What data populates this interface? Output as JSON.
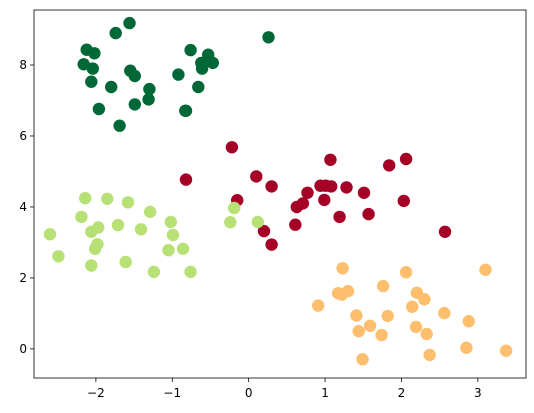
{
  "chart_data": {
    "type": "scatter",
    "title": "",
    "xlabel": "",
    "ylabel": "",
    "xlim": [
      -2.81,
      3.63
    ],
    "ylim": [
      -0.82,
      9.55
    ],
    "xticks": [
      -2,
      -1,
      0,
      1,
      2,
      3
    ],
    "yticks": [
      0,
      2,
      4,
      6,
      8
    ],
    "grid": false,
    "legend": "none",
    "series": [
      {
        "color": "#006837",
        "points": [
          [
            -1.56,
            9.18
          ],
          [
            -1.74,
            8.9
          ],
          [
            -2.12,
            8.43
          ],
          [
            -2.02,
            8.33
          ],
          [
            -0.76,
            8.42
          ],
          [
            -0.53,
            8.29
          ],
          [
            0.26,
            8.78
          ],
          [
            -2.16,
            8.02
          ],
          [
            -2.04,
            7.9
          ],
          [
            -0.62,
            8.06
          ],
          [
            -0.47,
            8.06
          ],
          [
            -0.61,
            7.9
          ],
          [
            -1.55,
            7.84
          ],
          [
            -1.49,
            7.69
          ],
          [
            -0.92,
            7.73
          ],
          [
            -2.06,
            7.53
          ],
          [
            -1.8,
            7.38
          ],
          [
            -0.66,
            7.38
          ],
          [
            -1.3,
            7.32
          ],
          [
            -1.31,
            7.03
          ],
          [
            -1.49,
            6.89
          ],
          [
            -1.96,
            6.76
          ],
          [
            -0.83,
            6.71
          ],
          [
            -0.82,
            6.71
          ],
          [
            -1.69,
            6.29
          ]
        ]
      },
      {
        "color": "#a50026",
        "points": [
          [
            -0.22,
            5.68
          ],
          [
            2.06,
            5.35
          ],
          [
            1.07,
            5.33
          ],
          [
            1.84,
            5.17
          ],
          [
            0.1,
            4.86
          ],
          [
            -0.82,
            4.77
          ],
          [
            0.3,
            4.58
          ],
          [
            0.94,
            4.6
          ],
          [
            1.01,
            4.6
          ],
          [
            1.08,
            4.58
          ],
          [
            1.28,
            4.55
          ],
          [
            0.77,
            4.4
          ],
          [
            1.51,
            4.4
          ],
          [
            -0.15,
            4.19
          ],
          [
            0.99,
            4.2
          ],
          [
            2.03,
            4.17
          ],
          [
            0.71,
            4.1
          ],
          [
            0.63,
            4.0
          ],
          [
            1.57,
            3.8
          ],
          [
            1.19,
            3.72
          ],
          [
            0.61,
            3.5
          ],
          [
            0.2,
            3.32
          ],
          [
            2.57,
            3.3
          ],
          [
            0.3,
            2.94
          ]
        ]
      },
      {
        "color": "#b7e075",
        "points": [
          [
            -2.14,
            4.25
          ],
          [
            -1.85,
            4.23
          ],
          [
            -1.58,
            4.13
          ],
          [
            -0.19,
            3.97
          ],
          [
            -1.29,
            3.86
          ],
          [
            -2.19,
            3.72
          ],
          [
            -1.02,
            3.58
          ],
          [
            0.12,
            3.58
          ],
          [
            -0.24,
            3.57
          ],
          [
            -1.71,
            3.49
          ],
          [
            -1.97,
            3.42
          ],
          [
            -1.41,
            3.37
          ],
          [
            -2.06,
            3.3
          ],
          [
            -2.6,
            3.23
          ],
          [
            -0.99,
            3.21
          ],
          [
            -1.98,
            2.95
          ],
          [
            -2.01,
            2.82
          ],
          [
            -0.86,
            2.82
          ],
          [
            -1.05,
            2.78
          ],
          [
            -2.49,
            2.61
          ],
          [
            -1.61,
            2.45
          ],
          [
            -2.06,
            2.35
          ],
          [
            -1.24,
            2.17
          ],
          [
            -0.76,
            2.17
          ]
        ]
      },
      {
        "color": "#fdbe6e",
        "points": [
          [
            1.23,
            2.27
          ],
          [
            3.1,
            2.23
          ],
          [
            2.06,
            2.16
          ],
          [
            1.76,
            1.77
          ],
          [
            2.2,
            1.58
          ],
          [
            1.3,
            1.63
          ],
          [
            1.17,
            1.57
          ],
          [
            1.22,
            1.53
          ],
          [
            2.3,
            1.4
          ],
          [
            2.14,
            1.19
          ],
          [
            0.91,
            1.22
          ],
          [
            2.56,
            1.01
          ],
          [
            1.82,
            0.93
          ],
          [
            1.41,
            0.94
          ],
          [
            2.88,
            0.78
          ],
          [
            2.19,
            0.62
          ],
          [
            1.59,
            0.65
          ],
          [
            1.44,
            0.5
          ],
          [
            2.33,
            0.42
          ],
          [
            1.74,
            0.39
          ],
          [
            2.85,
            0.03
          ],
          [
            3.37,
            -0.05
          ],
          [
            2.37,
            -0.17
          ],
          [
            1.49,
            -0.29
          ]
        ]
      }
    ]
  }
}
